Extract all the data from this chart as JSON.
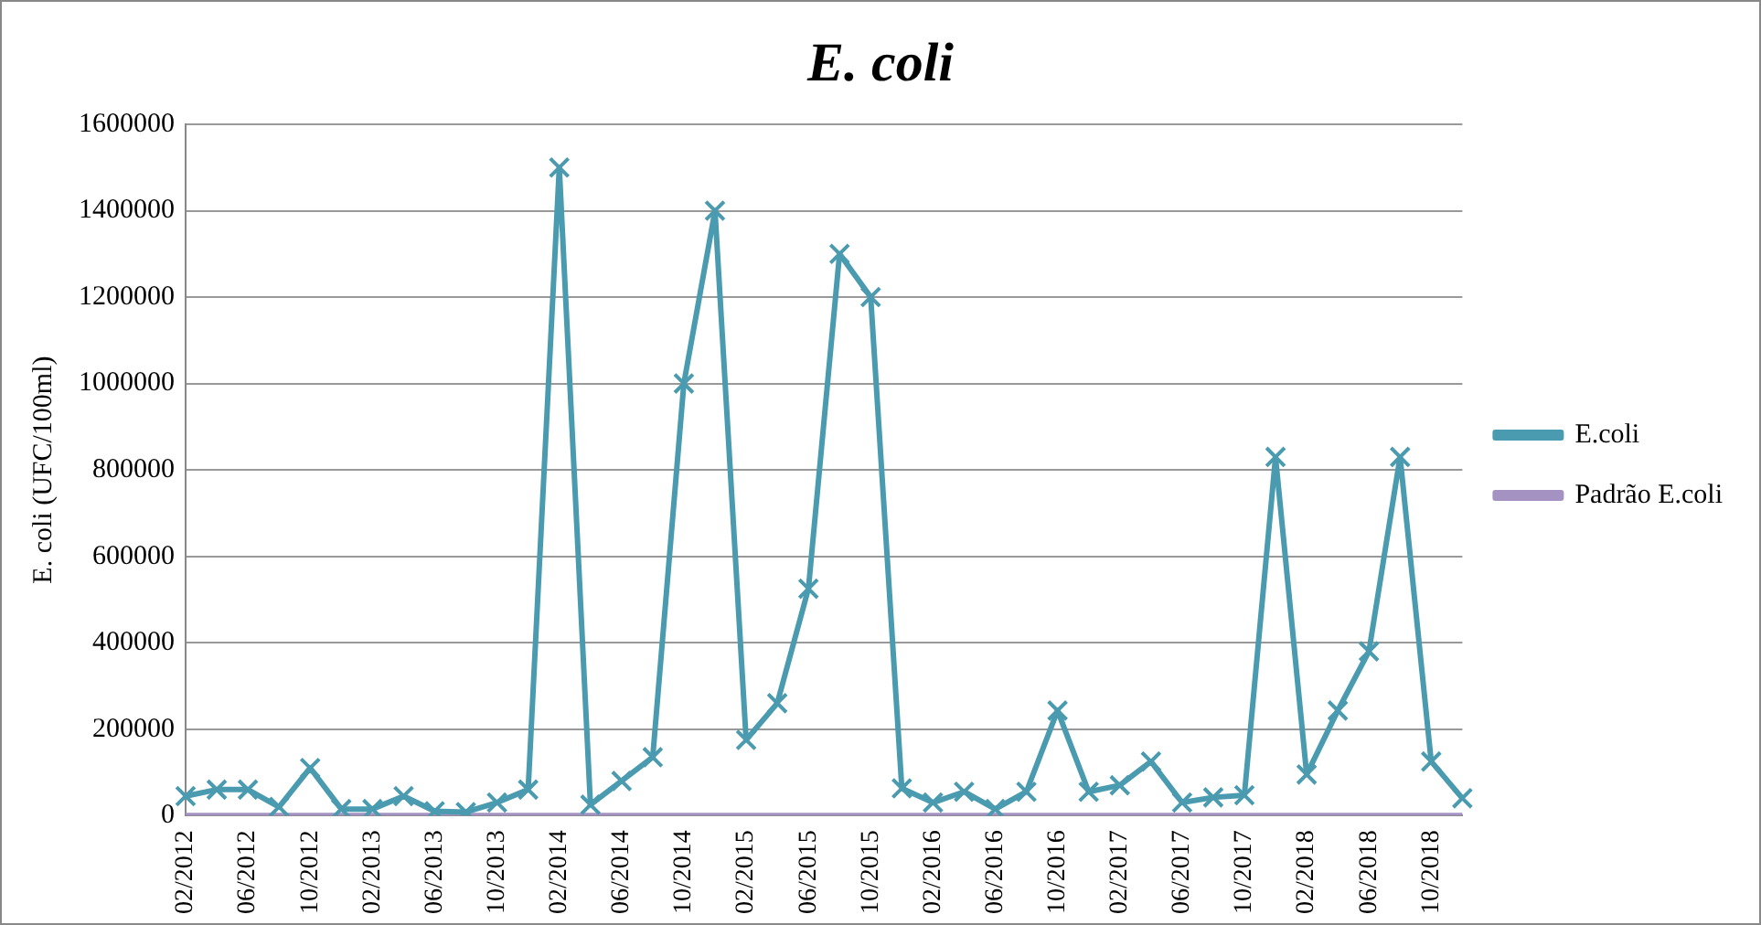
{
  "chart_data": {
    "type": "line",
    "title": "E. coli",
    "ylabel": "E. coli (UFC/100ml)",
    "categories": [
      "02/2012",
      null,
      "06/2012",
      null,
      "10/2012",
      null,
      "02/2013",
      null,
      "06/2013",
      null,
      "10/2013",
      null,
      "02/2014",
      null,
      "06/2014",
      null,
      "10/2014",
      null,
      "02/2015",
      null,
      "06/2015",
      null,
      "10/2015",
      null,
      "02/2016",
      null,
      "06/2016",
      null,
      "10/2016",
      null,
      "02/2017",
      null,
      "06/2017",
      null,
      "10/2017",
      null,
      "02/2018",
      null,
      "06/2018",
      null,
      "10/2018",
      null
    ],
    "series": [
      {
        "name": "E.coli",
        "color": "#4a9bb0",
        "marker": "cross",
        "values": [
          45000,
          60000,
          60000,
          20000,
          110000,
          15000,
          15000,
          45000,
          10000,
          8000,
          30000,
          60000,
          1500000,
          25000,
          80000,
          135000,
          1000000,
          1400000,
          175000,
          260000,
          525000,
          1300000,
          1200000,
          63000,
          30000,
          55000,
          15000,
          55000,
          243000,
          55000,
          70000,
          125000,
          30000,
          42000,
          47000,
          830000,
          95000,
          243000,
          380000,
          830000,
          125000,
          40000
        ]
      },
      {
        "name": "Padrão E.coli",
        "color": "#a392c2",
        "marker": "none",
        "values": [
          0,
          0,
          0,
          0,
          0,
          0,
          0,
          0,
          0,
          0,
          0,
          0,
          0,
          0,
          0,
          0,
          0,
          0,
          0,
          0,
          0,
          0,
          0,
          0,
          0,
          0,
          0,
          0,
          0,
          0,
          0,
          0,
          0,
          0,
          0,
          0,
          0,
          0,
          0,
          0,
          0,
          0
        ]
      }
    ],
    "ylim": [
      0,
      1600000
    ],
    "yticks": [
      0,
      200000,
      400000,
      600000,
      800000,
      1000000,
      1200000,
      1400000,
      1600000
    ],
    "grid": "y",
    "legend": "right",
    "line_style": "solid"
  }
}
